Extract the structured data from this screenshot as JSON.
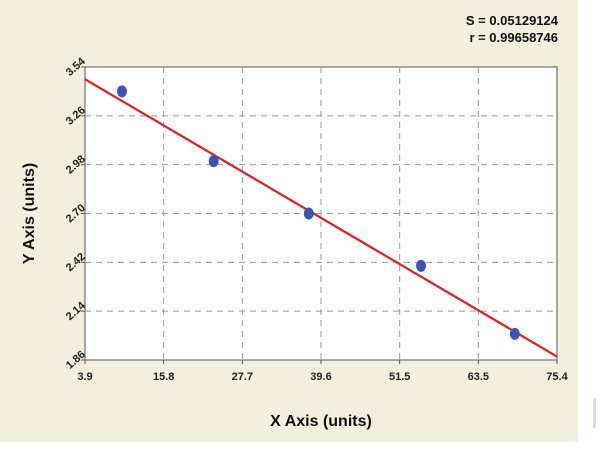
{
  "stats": {
    "s_label": "S = 0.05129124",
    "r_label": "r = 0.99658746"
  },
  "chart_data": {
    "type": "scatter",
    "title": "",
    "xlabel": "X Axis (units)",
    "ylabel": "Y Axis (units)",
    "xlim": [
      3.9,
      75.4
    ],
    "ylim": [
      1.86,
      3.54
    ],
    "x_ticks": [
      "3.9",
      "15.8",
      "27.7",
      "39.6",
      "51.5",
      "63.5",
      "75.4"
    ],
    "y_ticks": [
      "1.86",
      "2.14",
      "2.42",
      "2.70",
      "2.98",
      "3.26",
      "3.54"
    ],
    "grid": true,
    "points": [
      {
        "x": 9.5,
        "y": 3.4
      },
      {
        "x": 23.4,
        "y": 3.0
      },
      {
        "x": 37.8,
        "y": 2.7
      },
      {
        "x": 54.8,
        "y": 2.4
      },
      {
        "x": 69.0,
        "y": 2.01
      }
    ],
    "fit_line": {
      "x": [
        3.9,
        75.4
      ],
      "y": [
        3.47,
        1.88
      ]
    },
    "colors": {
      "points": "#3a55b4",
      "fit_line": "#e02020",
      "grid": "#9a9a9a"
    }
  }
}
